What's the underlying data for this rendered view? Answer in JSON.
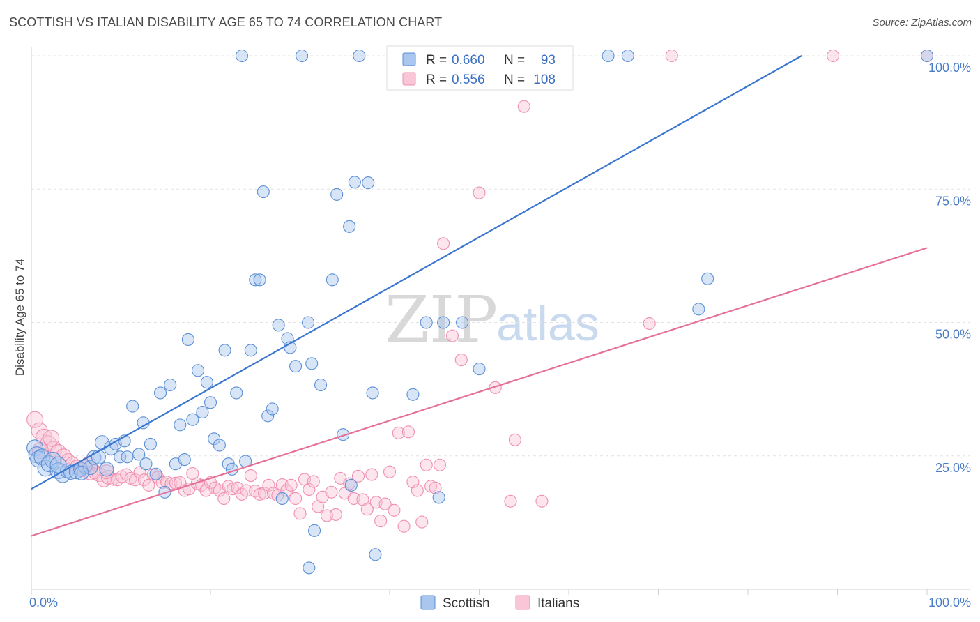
{
  "title": "SCOTTISH VS ITALIAN DISABILITY AGE 65 TO 74 CORRELATION CHART",
  "source": "Source: ZipAtlas.com",
  "watermark": {
    "part1": "ZIP",
    "part2": "atlas"
  },
  "legend": {
    "rows": [
      {
        "r_label": "R =",
        "r_value": "0.660",
        "n_label": "N =",
        "n_value": "93",
        "color": "#5b8fd6"
      },
      {
        "r_label": "R =",
        "r_value": "0.556",
        "n_label": "N =",
        "n_value": "108",
        "color": "#f08fb0"
      }
    ]
  },
  "chart_data": {
    "type": "scatter",
    "ylabel": "Disability Age 65 to 74",
    "xlim": [
      0,
      100
    ],
    "ylim": [
      0,
      100
    ],
    "x_tick_labels": [
      "0.0%",
      "100.0%"
    ],
    "y_tick_labels": [
      "25.0%",
      "50.0%",
      "75.0%",
      "100.0%"
    ],
    "y_ticks": [
      25,
      50,
      75,
      100
    ],
    "grid": "horizontal dashed",
    "legend_position": "top-center",
    "series": [
      {
        "name": "Scottish",
        "color": "#5b8fd6",
        "fill": "#a9c6ee",
        "r": 0.66,
        "n": 93,
        "trend": [
          [
            0,
            18.8
          ],
          [
            86,
            100
          ]
        ],
        "points": [
          [
            0.4,
            26.5
          ],
          [
            0.6,
            25.2
          ],
          [
            0.8,
            24.4
          ],
          [
            1.2,
            24.8
          ],
          [
            1.6,
            22.7
          ],
          [
            2.0,
            23.5
          ],
          [
            2.4,
            24.2
          ],
          [
            3.0,
            22.2
          ],
          [
            3.5,
            21.5
          ],
          [
            4.0,
            22.2
          ],
          [
            4.4,
            21.9
          ],
          [
            5.0,
            22.0
          ],
          [
            5.5,
            22.5
          ],
          [
            6.0,
            23.0
          ],
          [
            6.6,
            22.8
          ],
          [
            7.0,
            24.7
          ],
          [
            7.5,
            24.8
          ],
          [
            7.9,
            27.5
          ],
          [
            8.4,
            22.5
          ],
          [
            8.9,
            26.5
          ],
          [
            9.4,
            27.2
          ],
          [
            9.9,
            24.8
          ],
          [
            10.4,
            27.8
          ],
          [
            10.7,
            24.8
          ],
          [
            11.3,
            34.3
          ],
          [
            12.0,
            25.3
          ],
          [
            12.5,
            31.2
          ],
          [
            12.8,
            23.5
          ],
          [
            13.3,
            27.2
          ],
          [
            13.9,
            21.6
          ],
          [
            14.4,
            36.8
          ],
          [
            14.9,
            18.2
          ],
          [
            15.5,
            38.3
          ],
          [
            16.1,
            23.5
          ],
          [
            16.6,
            30.8
          ],
          [
            17.1,
            24.3
          ],
          [
            17.5,
            46.8
          ],
          [
            18.0,
            31.8
          ],
          [
            18.6,
            41.0
          ],
          [
            19.1,
            33.2
          ],
          [
            19.6,
            38.8
          ],
          [
            20.0,
            35.0
          ],
          [
            20.4,
            28.2
          ],
          [
            21.0,
            27.0
          ],
          [
            21.6,
            44.8
          ],
          [
            22.0,
            23.5
          ],
          [
            22.4,
            22.5
          ],
          [
            22.9,
            36.8
          ],
          [
            23.9,
            24.0
          ],
          [
            24.5,
            44.8
          ],
          [
            25.0,
            58.0
          ],
          [
            25.5,
            58.0
          ],
          [
            25.9,
            74.5
          ],
          [
            26.4,
            32.5
          ],
          [
            26.9,
            33.8
          ],
          [
            27.6,
            49.5
          ],
          [
            28.0,
            17.0
          ],
          [
            28.6,
            47.0
          ],
          [
            28.9,
            45.3
          ],
          [
            29.5,
            41.8
          ],
          [
            30.9,
            50.0
          ],
          [
            31.3,
            42.3
          ],
          [
            31.6,
            11.0
          ],
          [
            32.3,
            38.3
          ],
          [
            31.0,
            4.0
          ],
          [
            33.6,
            58.0
          ],
          [
            34.1,
            74.0
          ],
          [
            34.8,
            29.0
          ],
          [
            35.5,
            68.0
          ],
          [
            35.7,
            19.5
          ],
          [
            36.1,
            76.3
          ],
          [
            37.6,
            76.2
          ],
          [
            38.1,
            36.8
          ],
          [
            38.4,
            6.5
          ],
          [
            42.6,
            36.5
          ],
          [
            44.1,
            50.0
          ],
          [
            45.5,
            17.2
          ],
          [
            46.0,
            50.0
          ],
          [
            48.1,
            50.0
          ],
          [
            50.0,
            41.3
          ],
          [
            74.5,
            52.5
          ],
          [
            75.5,
            58.2
          ],
          [
            23.5,
            100
          ],
          [
            30.2,
            100
          ],
          [
            36.6,
            100
          ],
          [
            42.4,
            100
          ],
          [
            47.6,
            100
          ],
          [
            54.5,
            100
          ],
          [
            64.4,
            100
          ],
          [
            66.6,
            100
          ],
          [
            100,
            100
          ],
          [
            3.0,
            23.3
          ],
          [
            5.6,
            21.8
          ]
        ]
      },
      {
        "name": "Italians",
        "color": "#f08fb0",
        "fill": "#f8c6d6",
        "r": 0.556,
        "n": 108,
        "trend": [
          [
            0,
            10.0
          ],
          [
            100,
            64.0
          ]
        ],
        "points": [
          [
            0.4,
            31.8
          ],
          [
            0.9,
            29.7
          ],
          [
            1.4,
            28.5
          ],
          [
            1.9,
            27.3
          ],
          [
            2.5,
            26.2
          ],
          [
            3.0,
            25.6
          ],
          [
            3.6,
            24.8
          ],
          [
            4.1,
            24.1
          ],
          [
            4.6,
            23.5
          ],
          [
            5.1,
            22.9
          ],
          [
            5.6,
            22.4
          ],
          [
            6.1,
            22.9
          ],
          [
            6.6,
            21.8
          ],
          [
            7.1,
            22.0
          ],
          [
            7.6,
            21.5
          ],
          [
            8.1,
            20.5
          ],
          [
            8.6,
            21.0
          ],
          [
            9.1,
            20.6
          ],
          [
            9.6,
            20.5
          ],
          [
            10.1,
            21.1
          ],
          [
            10.6,
            21.5
          ],
          [
            11.1,
            20.8
          ],
          [
            11.6,
            20.5
          ],
          [
            12.1,
            21.9
          ],
          [
            12.6,
            20.5
          ],
          [
            13.1,
            19.5
          ],
          [
            13.6,
            21.5
          ],
          [
            14.1,
            21.0
          ],
          [
            14.6,
            20.0
          ],
          [
            15.1,
            20.1
          ],
          [
            15.6,
            19.8
          ],
          [
            16.1,
            19.9
          ],
          [
            16.6,
            20.0
          ],
          [
            17.1,
            18.5
          ],
          [
            17.6,
            18.8
          ],
          [
            18.0,
            21.7
          ],
          [
            18.5,
            19.8
          ],
          [
            19.0,
            19.5
          ],
          [
            19.5,
            18.5
          ],
          [
            20.0,
            20.0
          ],
          [
            20.5,
            19.0
          ],
          [
            21.0,
            18.5
          ],
          [
            21.5,
            17.0
          ],
          [
            22.0,
            19.3
          ],
          [
            22.5,
            18.8
          ],
          [
            23.0,
            19.0
          ],
          [
            23.5,
            17.8
          ],
          [
            24.0,
            18.5
          ],
          [
            24.5,
            21.3
          ],
          [
            25.0,
            18.4
          ],
          [
            25.5,
            17.8
          ],
          [
            26.0,
            18.0
          ],
          [
            26.5,
            19.5
          ],
          [
            27.0,
            18.0
          ],
          [
            27.5,
            17.6
          ],
          [
            28.0,
            19.6
          ],
          [
            28.5,
            18.5
          ],
          [
            29.0,
            19.5
          ],
          [
            29.5,
            17.0
          ],
          [
            30.0,
            14.2
          ],
          [
            30.5,
            20.6
          ],
          [
            31.0,
            18.7
          ],
          [
            31.5,
            20.2
          ],
          [
            32.0,
            15.5
          ],
          [
            32.5,
            17.3
          ],
          [
            33.0,
            13.8
          ],
          [
            33.5,
            18.2
          ],
          [
            34.0,
            14.0
          ],
          [
            34.5,
            20.8
          ],
          [
            35.0,
            18.0
          ],
          [
            35.5,
            19.8
          ],
          [
            36.0,
            17.0
          ],
          [
            36.5,
            21.2
          ],
          [
            37.0,
            16.8
          ],
          [
            37.5,
            15.0
          ],
          [
            38.0,
            21.5
          ],
          [
            38.5,
            16.3
          ],
          [
            39.0,
            12.8
          ],
          [
            39.5,
            16.0
          ],
          [
            40.0,
            22.0
          ],
          [
            40.5,
            14.8
          ],
          [
            41.0,
            29.3
          ],
          [
            41.6,
            11.8
          ],
          [
            42.1,
            29.5
          ],
          [
            42.6,
            20.1
          ],
          [
            43.1,
            18.5
          ],
          [
            43.6,
            12.6
          ],
          [
            44.1,
            23.3
          ],
          [
            44.6,
            19.3
          ],
          [
            45.1,
            19.0
          ],
          [
            45.6,
            23.3
          ],
          [
            46.0,
            64.8
          ],
          [
            47.0,
            47.5
          ],
          [
            48.0,
            43.0
          ],
          [
            50.0,
            74.3
          ],
          [
            51.8,
            37.8
          ],
          [
            53.5,
            16.5
          ],
          [
            54.0,
            28.0
          ],
          [
            55.0,
            90.5
          ],
          [
            57.0,
            16.5
          ],
          [
            69.0,
            49.8
          ],
          [
            89.5,
            100
          ],
          [
            71.5,
            100
          ],
          [
            100,
            100
          ],
          [
            1.0,
            26.0
          ],
          [
            2.2,
            28.3
          ],
          [
            6.4,
            23.6
          ],
          [
            8.4,
            22.0
          ]
        ]
      }
    ]
  },
  "bottom_legend": [
    {
      "label": "Scottish",
      "color": "#5b8fd6",
      "fill": "#a9c6ee"
    },
    {
      "label": "Italians",
      "color": "#f08fb0",
      "fill": "#f8c6d6"
    }
  ]
}
